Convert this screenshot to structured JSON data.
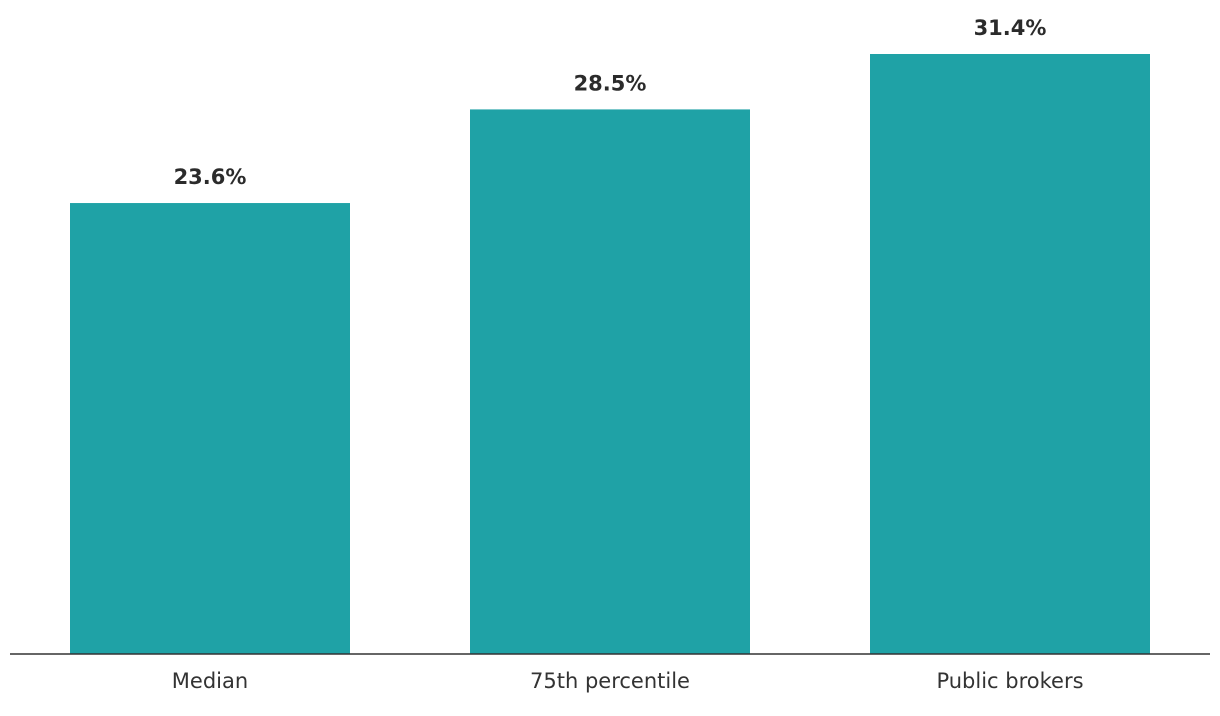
{
  "chart_data": {
    "type": "bar",
    "categories": [
      "Median",
      "75th percentile",
      "Public brokers"
    ],
    "values": [
      23.6,
      28.5,
      31.4
    ],
    "value_labels": [
      "23.6%",
      "28.5%",
      "31.4%"
    ],
    "color": "#1fa2a6"
  }
}
